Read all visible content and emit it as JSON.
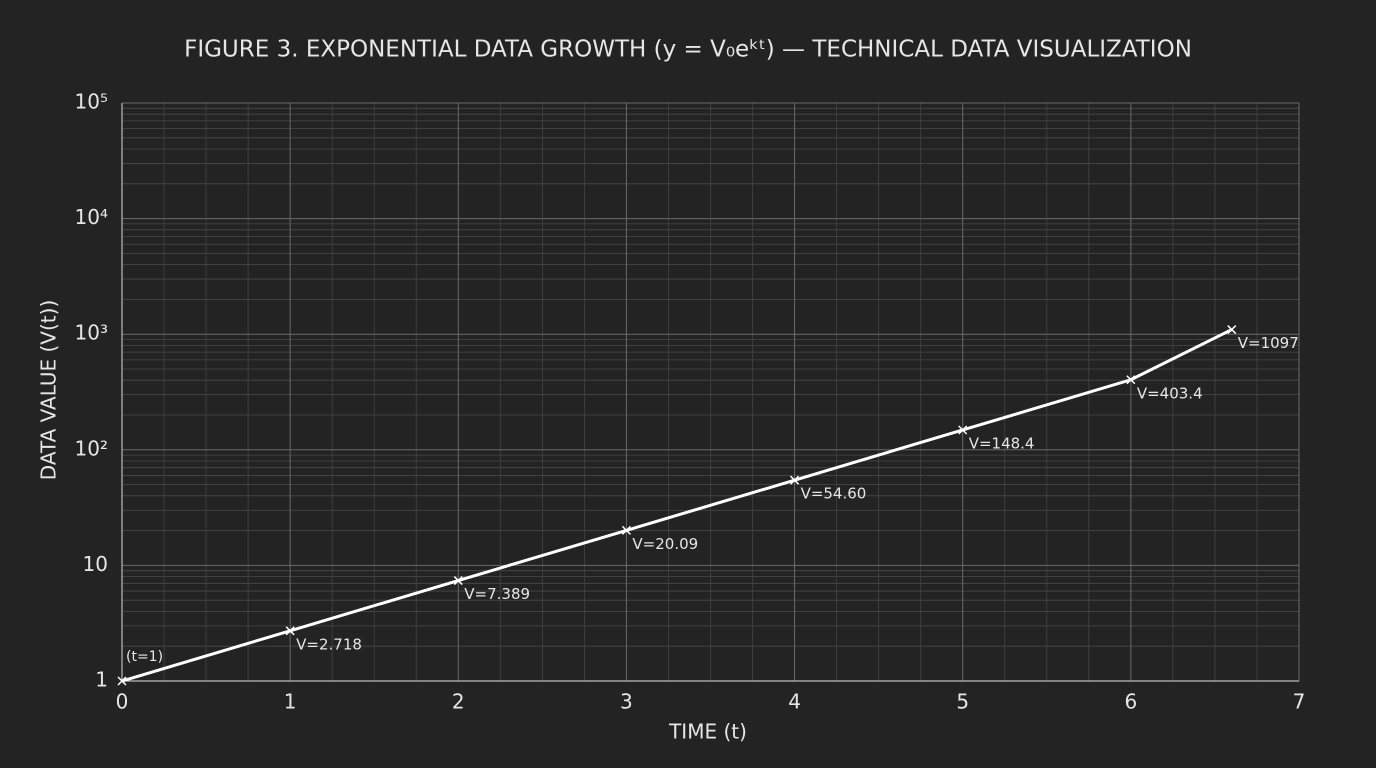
{
  "chart_data": {
    "type": "line",
    "title": "FIGURE 3. EXPONENTIAL DATA GROWTH (y = V₀eᵏᵗ) — TECHNICAL DATA VISUALIZATION",
    "x_label": "TIME (t)",
    "y_label": "DATA VALUE (V(t))",
    "annotation": "(t=1)",
    "x": [
      0,
      1,
      2,
      3,
      4,
      5,
      6,
      6.6
    ],
    "values": [
      1,
      2.718,
      7.389,
      20.09,
      54.6,
      148.4,
      403.4,
      1097
    ],
    "value_labels": [
      null,
      "V=2.718",
      "V=7.389",
      "V=20.09",
      "V=54.60",
      "V=148.4",
      "V=403.4",
      "V=1097"
    ],
    "color": "#ffffff",
    "xlim": [
      0,
      7
    ],
    "xticks": [
      0,
      1,
      2,
      3,
      4,
      5,
      6,
      7
    ],
    "ylim": [
      1,
      100000
    ],
    "log_y": true,
    "yticks": [
      1,
      10,
      {
        "value": 100,
        "label": "10²"
      },
      {
        "value": 1000,
        "label": "10³"
      },
      {
        "value": 10000,
        "label": "10⁴"
      },
      {
        "value": 100000,
        "label": "10⁵"
      }
    ],
    "grid": true
  }
}
